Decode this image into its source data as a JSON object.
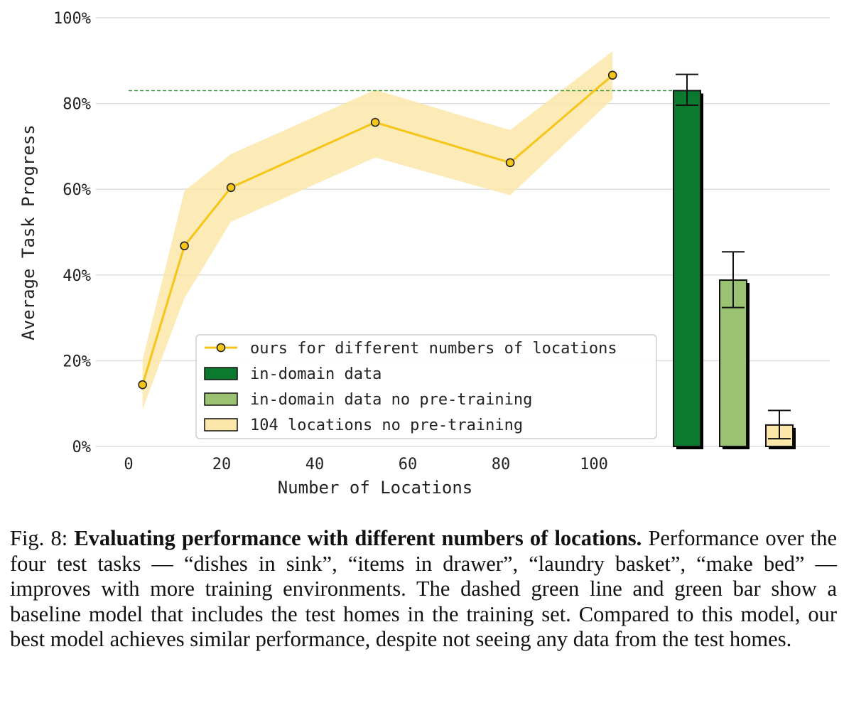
{
  "chart_data": {
    "type": "line",
    "xlabel": "Number of Locations",
    "ylabel": "Average Task Progress",
    "xlim": [
      -4,
      113
    ],
    "ylim": [
      0,
      100
    ],
    "x_ticks": [
      0,
      20,
      40,
      60,
      80,
      100
    ],
    "y_ticks": [
      0,
      20,
      40,
      60,
      80,
      100
    ],
    "y_tick_labels": [
      "0%",
      "20%",
      "40%",
      "60%",
      "80%",
      "100%"
    ],
    "grid": "horizontal",
    "legend_position": "lower-center",
    "series": [
      {
        "name": "ours for different numbers of locations",
        "x": [
          3,
          12,
          22,
          53,
          82,
          104
        ],
        "y": [
          14.4,
          46.8,
          60.4,
          75.6,
          66.2,
          86.6
        ],
        "y_lower": [
          8.6,
          34.6,
          52.4,
          67.4,
          58.6,
          81.0
        ],
        "y_upper": [
          20.2,
          59.6,
          68.2,
          83.2,
          73.8,
          92.2
        ],
        "color": "#f5c518",
        "band_color": "#fbe7a9"
      }
    ],
    "bars": [
      {
        "name": "in-domain data",
        "value": 83.0,
        "err_low": 79.6,
        "err_high": 86.8,
        "color": "#0b7a2e"
      },
      {
        "name": "in-domain data no pre-training",
        "value": 38.8,
        "err_low": 32.4,
        "err_high": 45.4,
        "color": "#9bc173"
      },
      {
        "name": "104 locations no pre-training",
        "value": 5.0,
        "err_low": 1.8,
        "err_high": 8.4,
        "color": "#fbe7a9"
      }
    ],
    "baseline_line": {
      "value": 83.0,
      "color": "#3f9a3a",
      "style": "dashed"
    }
  },
  "caption": {
    "prefix": "Fig. 8: ",
    "title": "Evaluating performance with different numbers of locations.",
    "body": "Performance over the four test tasks — “dishes in sink”, “items in drawer”, “laundry basket”, “make bed” — improves with more training environments. The dashed green line and green bar show a baseline model that includes the test homes in the training set. Compared to this model, our best model achieves similar performance, despite not seeing any data from the test homes."
  }
}
